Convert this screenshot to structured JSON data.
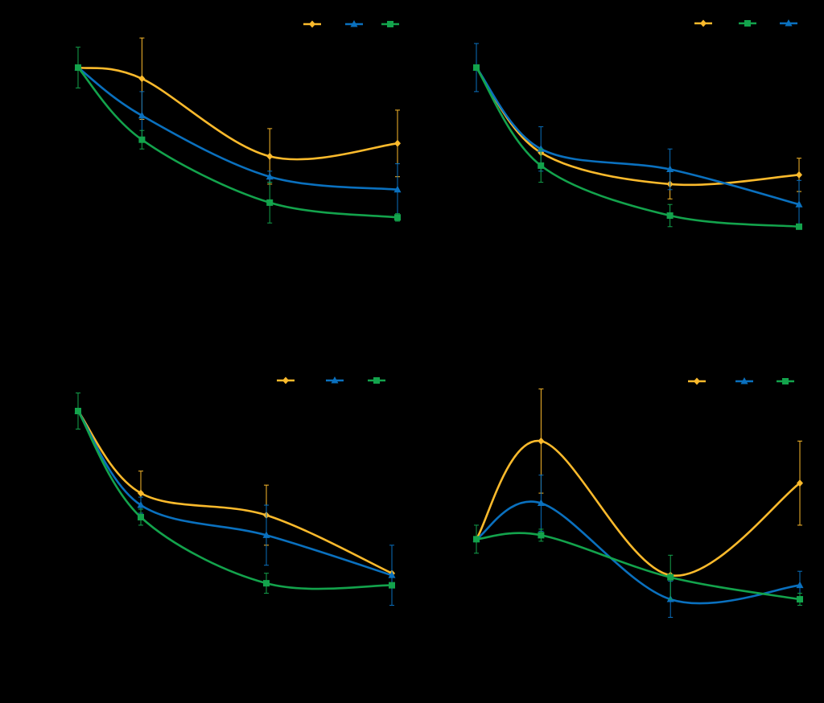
{
  "figure": {
    "background": "#000000"
  },
  "colors": {
    "yellow": "#FBBA2C",
    "blue": "#0A70BE",
    "green": "#13A34C"
  },
  "chart_data": [
    {
      "id": "panel-top-left",
      "type": "line",
      "title": "",
      "xlabel": "",
      "ylabel": "",
      "x": [
        0,
        1,
        3,
        5
      ],
      "xlim": [
        0,
        5
      ],
      "ylim": [
        0,
        1
      ],
      "legend_position": "top-right",
      "legend_order": [
        "yellow",
        "blue",
        "green"
      ],
      "series": [
        {
          "color_key": "yellow",
          "marker": "diamond",
          "values": [
            1.0,
            0.94,
            0.52,
            0.59
          ],
          "errors": [
            0.0,
            0.22,
            0.15,
            0.18
          ]
        },
        {
          "color_key": "blue",
          "marker": "triangle",
          "values": [
            1.0,
            0.74,
            0.41,
            0.34
          ],
          "errors": [
            0.0,
            0.13,
            0.03,
            0.14
          ]
        },
        {
          "color_key": "green",
          "marker": "square",
          "values": [
            1.0,
            0.61,
            0.27,
            0.19
          ],
          "errors": [
            0.11,
            0.05,
            0.11,
            0.02
          ]
        }
      ]
    },
    {
      "id": "panel-top-right",
      "type": "line",
      "title": "",
      "xlabel": "",
      "ylabel": "",
      "x": [
        0,
        1,
        3,
        5
      ],
      "xlim": [
        0,
        5
      ],
      "ylim": [
        0,
        1
      ],
      "legend_position": "top-right",
      "legend_order": [
        "yellow",
        "green",
        "blue"
      ],
      "series": [
        {
          "color_key": "yellow",
          "marker": "diamond",
          "values": [
            1.0,
            0.54,
            0.37,
            0.42
          ],
          "errors": [
            0.0,
            0.0,
            0.08,
            0.09
          ]
        },
        {
          "color_key": "blue",
          "marker": "triangle",
          "values": [
            1.0,
            0.56,
            0.45,
            0.26
          ],
          "errors": [
            0.13,
            0.12,
            0.11,
            0.13
          ]
        },
        {
          "color_key": "green",
          "marker": "square",
          "values": [
            1.0,
            0.47,
            0.2,
            0.14
          ],
          "errors": [
            0.0,
            0.09,
            0.06,
            0.0
          ]
        }
      ]
    },
    {
      "id": "panel-bottom-left",
      "type": "line",
      "title": "",
      "xlabel": "",
      "ylabel": "",
      "x": [
        0,
        1,
        3,
        5
      ],
      "xlim": [
        0,
        5
      ],
      "ylim": [
        0,
        1
      ],
      "legend_position": "top-right",
      "legend_order": [
        "yellow",
        "blue",
        "green"
      ],
      "series": [
        {
          "color_key": "yellow",
          "marker": "diamond",
          "values": [
            1.0,
            0.59,
            0.48,
            0.19
          ],
          "errors": [
            0.0,
            0.11,
            0.15,
            0.0
          ]
        },
        {
          "color_key": "blue",
          "marker": "triangle",
          "values": [
            1.0,
            0.53,
            0.38,
            0.18
          ],
          "errors": [
            0.0,
            0.04,
            0.15,
            0.15
          ]
        },
        {
          "color_key": "green",
          "marker": "square",
          "values": [
            1.0,
            0.47,
            0.14,
            0.13
          ],
          "errors": [
            0.09,
            0.04,
            0.05,
            0.0
          ]
        }
      ]
    },
    {
      "id": "panel-bottom-right",
      "type": "line",
      "title": "",
      "xlabel": "",
      "ylabel": "",
      "x": [
        0,
        1,
        3,
        5
      ],
      "xlim": [
        0,
        5
      ],
      "ylim": [
        0,
        1
      ],
      "legend_position": "top-right",
      "legend_order": [
        "yellow",
        "blue",
        "green"
      ],
      "series": [
        {
          "color_key": "yellow",
          "marker": "diamond",
          "values": [
            0.36,
            0.85,
            0.18,
            0.64
          ],
          "errors": [
            0.0,
            0.26,
            0.0,
            0.21
          ]
        },
        {
          "color_key": "blue",
          "marker": "triangle",
          "values": [
            0.36,
            0.54,
            0.06,
            0.13
          ],
          "errors": [
            0.0,
            0.14,
            0.09,
            0.07
          ]
        },
        {
          "color_key": "green",
          "marker": "square",
          "values": [
            0.36,
            0.38,
            0.17,
            0.06
          ],
          "errors": [
            0.07,
            0.03,
            0.11,
            0.03
          ]
        }
      ]
    }
  ]
}
